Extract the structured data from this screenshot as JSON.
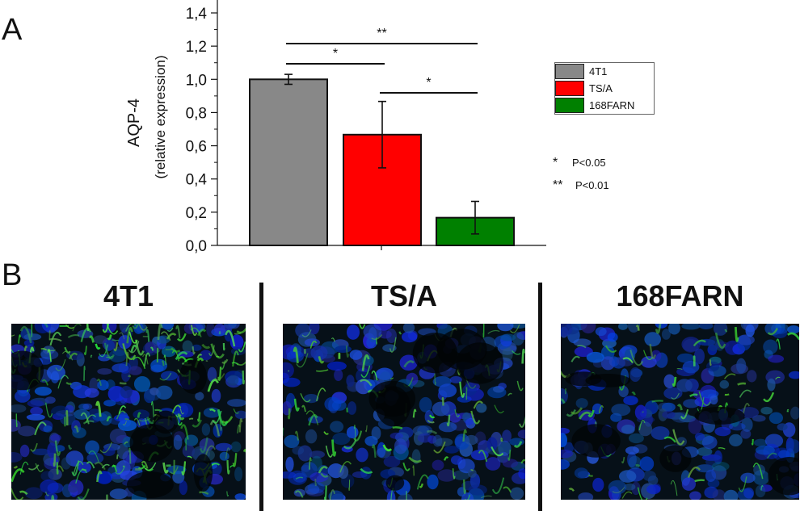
{
  "panel_a": {
    "letter": "A"
  },
  "panel_b": {
    "letter": "B"
  },
  "chart_data": {
    "type": "bar",
    "categories": [
      "4T1",
      "TS/A",
      "168FARN"
    ],
    "values": [
      1.0,
      0.667,
      0.167
    ],
    "errors": [
      0.03,
      0.2,
      0.098
    ],
    "colors": [
      "#888888",
      "#ff0000",
      "#008000"
    ],
    "ylabel": "AQP-4",
    "ylabel_sub": "(relative expression)",
    "ylim": [
      0,
      1.4
    ],
    "yticks": [
      "0,0",
      "0,2",
      "0,4",
      "0,6",
      "0,8",
      "1,0",
      "1,2",
      "1,4"
    ],
    "ytick_values": [
      0,
      0.2,
      0.4,
      0.6,
      0.8,
      1.0,
      1.2,
      1.4
    ],
    "legend": {
      "placement": "right",
      "entries": [
        "4T1",
        "TS/A",
        "168FARN"
      ]
    },
    "significance": [
      {
        "from": 0,
        "to": 1,
        "label": "*"
      },
      {
        "from": 0,
        "to": 2,
        "label": "**"
      },
      {
        "from": 1,
        "to": 2,
        "label": "*"
      }
    ],
    "significance_key": [
      {
        "symbol": "*",
        "text": "P<0.05"
      },
      {
        "symbol": "**",
        "text": "P<0.01"
      }
    ]
  },
  "images": [
    {
      "title": "4T1"
    },
    {
      "title": "TS/A"
    },
    {
      "title": "168FARN"
    }
  ]
}
